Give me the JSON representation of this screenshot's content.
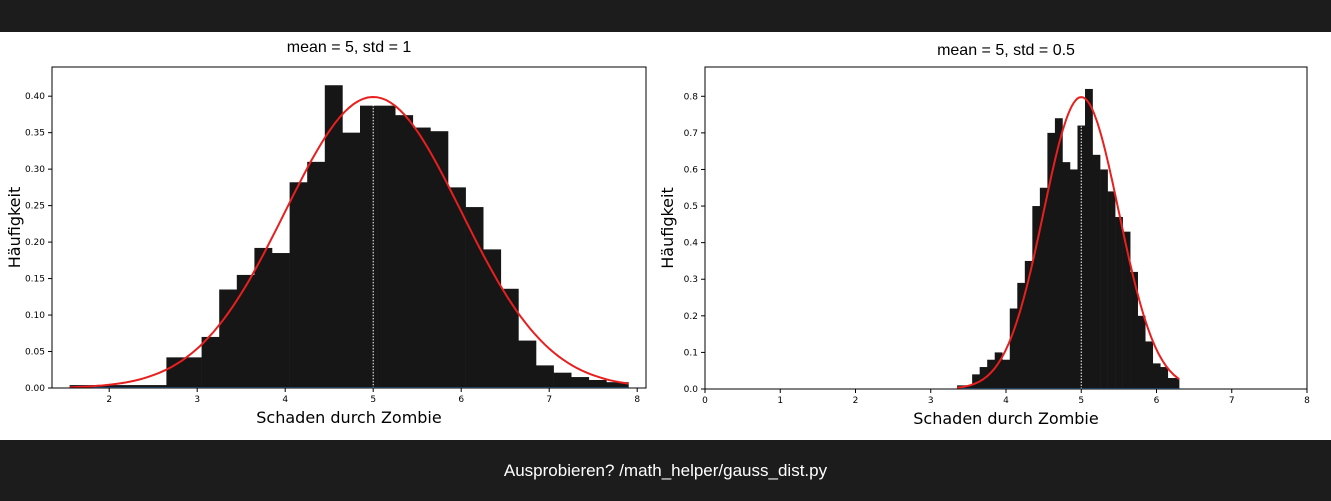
{
  "footer": {
    "text": "Ausprobieren? /math_helper/gauss_dist.py"
  },
  "colors": {
    "bars": "#161616",
    "fit_line": "#e81f1f",
    "mean_line": "#ffffff",
    "baseline": "#3b7fc4"
  },
  "chart_data": [
    {
      "type": "bar",
      "title": "mean = 5, std = 1",
      "xlabel": "Schaden durch Zombie",
      "ylabel": "Häufigkeit",
      "xlim": [
        1.35,
        8.1
      ],
      "ylim": [
        0,
        0.44
      ],
      "xticks": [
        "2",
        "3",
        "4",
        "5",
        "6",
        "7",
        "8"
      ],
      "yticks": [
        "0.00",
        "0.05",
        "0.10",
        "0.15",
        "0.20",
        "0.25",
        "0.30",
        "0.35",
        "0.40"
      ],
      "bin_edges": [
        1.55,
        1.75,
        1.95,
        2.15,
        2.35,
        2.55,
        2.65,
        2.85,
        3.05,
        3.25,
        3.45,
        3.65,
        3.85,
        4.05,
        4.25,
        4.45,
        4.65,
        4.85,
        5.05,
        5.25,
        5.45,
        5.65,
        5.85,
        6.05,
        6.25,
        6.45,
        6.65,
        6.85,
        7.05,
        7.25,
        7.45,
        7.65,
        7.9
      ],
      "values": [
        0.004,
        0.004,
        0.004,
        0.004,
        0.004,
        0.004,
        0.042,
        0.042,
        0.07,
        0.135,
        0.155,
        0.192,
        0.185,
        0.282,
        0.31,
        0.415,
        0.35,
        0.387,
        0.387,
        0.374,
        0.357,
        0.352,
        0.275,
        0.248,
        0.19,
        0.136,
        0.065,
        0.031,
        0.021,
        0.015,
        0.011,
        0.008
      ],
      "fit_curve": {
        "label": "normal pdf",
        "mean": 5,
        "std": 1
      },
      "mean_marker": 5
    },
    {
      "type": "bar",
      "title": "mean = 5, std = 0.5",
      "xlabel": "Schaden durch Zombie",
      "ylabel": "Häufigkeit",
      "xlim": [
        0,
        8
      ],
      "ylim": [
        0,
        0.88
      ],
      "xticks": [
        "0",
        "1",
        "2",
        "3",
        "4",
        "5",
        "6",
        "7",
        "8"
      ],
      "yticks": [
        "0.0",
        "0.1",
        "0.2",
        "0.3",
        "0.4",
        "0.5",
        "0.6",
        "0.7",
        "0.8"
      ],
      "bin_edges": [
        3.35,
        3.45,
        3.55,
        3.65,
        3.75,
        3.85,
        3.95,
        4.05,
        4.15,
        4.25,
        4.35,
        4.45,
        4.55,
        4.65,
        4.75,
        4.85,
        4.95,
        5.05,
        5.15,
        5.25,
        5.35,
        5.45,
        5.55,
        5.65,
        5.75,
        5.85,
        5.95,
        6.05,
        6.15,
        6.3
      ],
      "values": [
        0.01,
        0.01,
        0.04,
        0.06,
        0.08,
        0.1,
        0.08,
        0.22,
        0.29,
        0.35,
        0.5,
        0.55,
        0.7,
        0.74,
        0.62,
        0.6,
        0.72,
        0.82,
        0.64,
        0.6,
        0.54,
        0.47,
        0.43,
        0.32,
        0.2,
        0.13,
        0.07,
        0.06,
        0.03
      ],
      "fit_curve": {
        "label": "normal pdf",
        "mean": 5,
        "std": 0.5
      },
      "mean_marker": 5
    }
  ]
}
